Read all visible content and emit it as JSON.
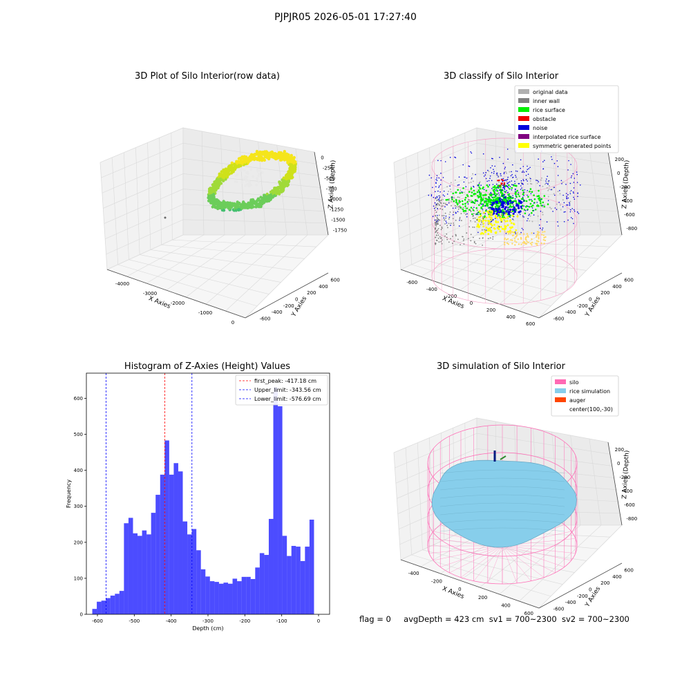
{
  "figure": {
    "suptitle": "PJPJR05 2026-05-01 17:27:40",
    "bottom_text": {
      "flag": "flag = 0",
      "avg_depth": "avgDepth = 423 cm",
      "sv1": "sv1 = 700~2300",
      "sv2": "sv2 = 700~2300"
    }
  },
  "chart_data": [
    {
      "type": "scatter3d",
      "title": "3D Plot of Silo Interior(row data)",
      "xlabel": "X Axies",
      "ylabel": "Y Axies",
      "zlabel": "Z Axies (Depth)",
      "x_ticks": [
        "-4000",
        "-3000",
        "-2000",
        "-1000",
        "0"
      ],
      "y_ticks": [
        "-600",
        "-400",
        "-200",
        "0",
        "200",
        "400",
        "600"
      ],
      "z_ticks": [
        "0",
        "-250",
        "-500",
        "-750",
        "-1000",
        "-1250",
        "-1500",
        "-1750"
      ],
      "colormap": [
        "#f5e51b",
        "#cfe11a",
        "#a0da39",
        "#6ccd5a",
        "#44bf70"
      ]
    },
    {
      "type": "scatter3d",
      "title": "3D classify of Silo Interior",
      "xlabel": "X Axies",
      "ylabel": "Y Axies",
      "zlabel": "Z Axies (Depth)",
      "x_ticks": [
        "-600",
        "-400",
        "-200",
        "0",
        "200",
        "400",
        "600"
      ],
      "y_ticks": [
        "-600",
        "-400",
        "-200",
        "0",
        "200",
        "400",
        "600"
      ],
      "z_ticks": [
        "200",
        "0",
        "-200",
        "-400",
        "-600",
        "-800"
      ],
      "legend_loc": "upper right",
      "legend": [
        {
          "label": "original data",
          "color": "#b0b0b0"
        },
        {
          "label": "inner wall",
          "color": "#808080"
        },
        {
          "label": "rice surface",
          "color": "#00ee00"
        },
        {
          "label": "obstacle",
          "color": "#ee0000"
        },
        {
          "label": "noise",
          "color": "#0000dd"
        },
        {
          "label": "interpolated rice surface",
          "color": "#800080"
        },
        {
          "label": "symmetric generated points",
          "color": "#ffff00"
        }
      ]
    },
    {
      "type": "bar",
      "title": "Histogram of Z-Axies (Height) Values",
      "xlabel": "Depth (cm)",
      "ylabel": "Frequency",
      "xlim": [
        -630,
        30
      ],
      "ylim": [
        0,
        670
      ],
      "x_ticks": [
        -600,
        -500,
        -400,
        -300,
        -200,
        -100,
        0
      ],
      "y_ticks": [
        0,
        100,
        200,
        300,
        400,
        500,
        600
      ],
      "bin_start": -614,
      "bin_width": 12.28,
      "values": [
        15,
        35,
        38,
        45,
        52,
        57,
        65,
        253,
        268,
        225,
        218,
        233,
        222,
        282,
        332,
        388,
        483,
        388,
        420,
        397,
        258,
        222,
        237,
        178,
        125,
        105,
        92,
        90,
        85,
        88,
        85,
        99,
        92,
        104,
        104,
        98,
        130,
        170,
        165,
        265,
        630,
        578,
        218,
        162,
        190,
        188,
        148,
        188,
        263
      ],
      "bar_color": "#0000ff",
      "bar_alpha": 0.7,
      "vlines": [
        {
          "x": -417.18,
          "color": "#ff0000",
          "label": "first_peak: -417.18 cm"
        },
        {
          "x": -343.56,
          "color": "#0000ff",
          "label": "Upper_limit: -343.56 cm"
        },
        {
          "x": -576.69,
          "color": "#0000ff",
          "label": "Lower_limit: -576.69 cm"
        }
      ],
      "legend_loc": "upper right"
    },
    {
      "type": "surface3d",
      "title": "3D simulation of Silo Interior",
      "xlabel": "X Axies",
      "ylabel": "Y Axies",
      "zlabel": "Z Axies (Depth)",
      "x_ticks": [
        "-400",
        "-200",
        "0",
        "200",
        "400",
        "600"
      ],
      "y_ticks": [
        "-600",
        "-400",
        "-200",
        "0",
        "200",
        "400",
        "600"
      ],
      "z_ticks": [
        "200",
        "0",
        "-200",
        "-400",
        "-600",
        "-800"
      ],
      "legend_loc": "upper right",
      "legend": [
        {
          "label": "silo",
          "color": "#ff69b4"
        },
        {
          "label": "rice simulation",
          "color": "#87ceeb"
        },
        {
          "label": "auger",
          "color": "#ff4500"
        },
        {
          "label": "center(100,-30)",
          "color": ""
        }
      ]
    }
  ]
}
